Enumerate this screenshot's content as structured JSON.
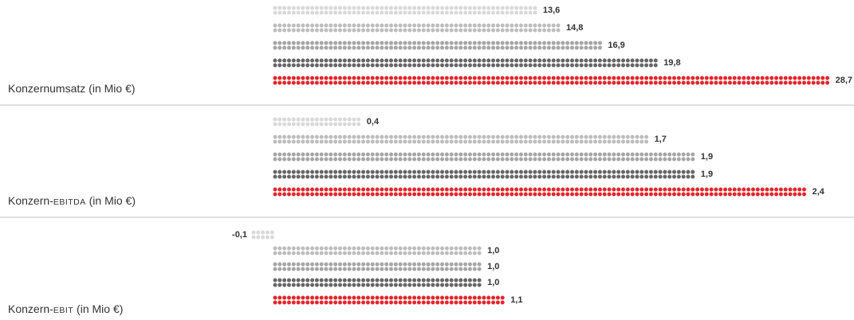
{
  "colors": {
    "series": [
      "#d9d9d9",
      "#bdbdbd",
      "#a6a6a6",
      "#666666",
      "#e3262b"
    ],
    "divider": "#bfbfbf",
    "text": "#333333"
  },
  "chart_data": [
    {
      "type": "bar",
      "label": {
        "prefix": "Konzernumsatz",
        "sc": "",
        "suffix": " (in Mio €)"
      },
      "values": [
        13.6,
        14.8,
        16.9,
        19.8,
        28.7
      ],
      "value_labels": [
        "13,6",
        "14,8",
        "16,9",
        "19,8",
        "28,7"
      ]
    },
    {
      "type": "bar",
      "label": {
        "prefix": "Konzern-",
        "sc": "ebitda",
        "suffix": " (in Mio €)"
      },
      "values": [
        0.4,
        1.7,
        1.9,
        1.9,
        2.4
      ],
      "value_labels": [
        "0,4",
        "1,7",
        "1,9",
        "1,9",
        "2,4"
      ]
    },
    {
      "type": "bar",
      "label": {
        "prefix": "Konzern-",
        "sc": "ebit",
        "suffix": " (in Mio €)"
      },
      "values": [
        -0.1,
        1.0,
        1.0,
        1.0,
        1.1
      ],
      "value_labels": [
        "-0,1",
        "1,0",
        "1,0",
        "1,0",
        "1,1"
      ]
    }
  ]
}
